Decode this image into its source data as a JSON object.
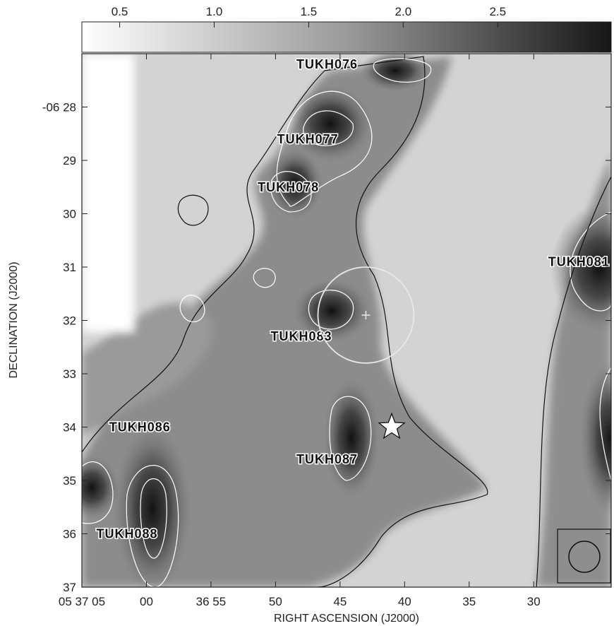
{
  "chart_data": {
    "type": "heatmap",
    "colorbar": {
      "tick_labels": [
        "0.5",
        "1.0",
        "1.5",
        "2.0",
        "2.5"
      ],
      "ticks": [
        0.5,
        1.0,
        1.5,
        2.0,
        2.5
      ],
      "range": [
        0.3,
        3.1
      ],
      "colormap": "white-to-black grayscale"
    },
    "xlabel": "RIGHT ASCENSION (J2000)",
    "ylabel": "DECLINATION (J2000)",
    "x_tick_labels": [
      "05 37 05",
      "00",
      "36 55",
      "50",
      "45",
      "40",
      "35",
      "30"
    ],
    "y_tick_labels": [
      "-06 28",
      "29",
      "30",
      "31",
      "32",
      "33",
      "34",
      "35",
      "36",
      "37"
    ],
    "x_range_s": [
      65,
      24
    ],
    "y_range_arcmin": [
      27.0,
      37.0
    ],
    "sources": [
      {
        "name": "TUKH076",
        "ra_s": 46.0,
        "dec_arcmin": 27.2
      },
      {
        "name": "TUKH077",
        "ra_s": 47.5,
        "dec_arcmin": 28.6
      },
      {
        "name": "TUKH078",
        "ra_s": 49.0,
        "dec_arcmin": 29.5
      },
      {
        "name": "TUKH081",
        "ra_s": 26.5,
        "dec_arcmin": 30.9
      },
      {
        "name": "TUKH083",
        "ra_s": 48.0,
        "dec_arcmin": 32.3
      },
      {
        "name": "TUKH086",
        "ra_s": 60.5,
        "dec_arcmin": 34.0
      },
      {
        "name": "TUKH087",
        "ra_s": 46.0,
        "dec_arcmin": 34.6
      },
      {
        "name": "TUKH088",
        "ra_s": 61.5,
        "dec_arcmin": 36.0
      }
    ],
    "markers": {
      "star": {
        "ra_s": 41.0,
        "dec_arcmin": 34.0
      },
      "circle_center": {
        "ra_s": 43.0,
        "dec_arcmin": 31.9
      },
      "circle_radius_arcmin": 0.6
    },
    "grid": false
  },
  "colors": {
    "background_light": "#d6d6d6",
    "emission_dark": "#151515",
    "contour_black": "#111111",
    "contour_white": "#ffffff"
  }
}
